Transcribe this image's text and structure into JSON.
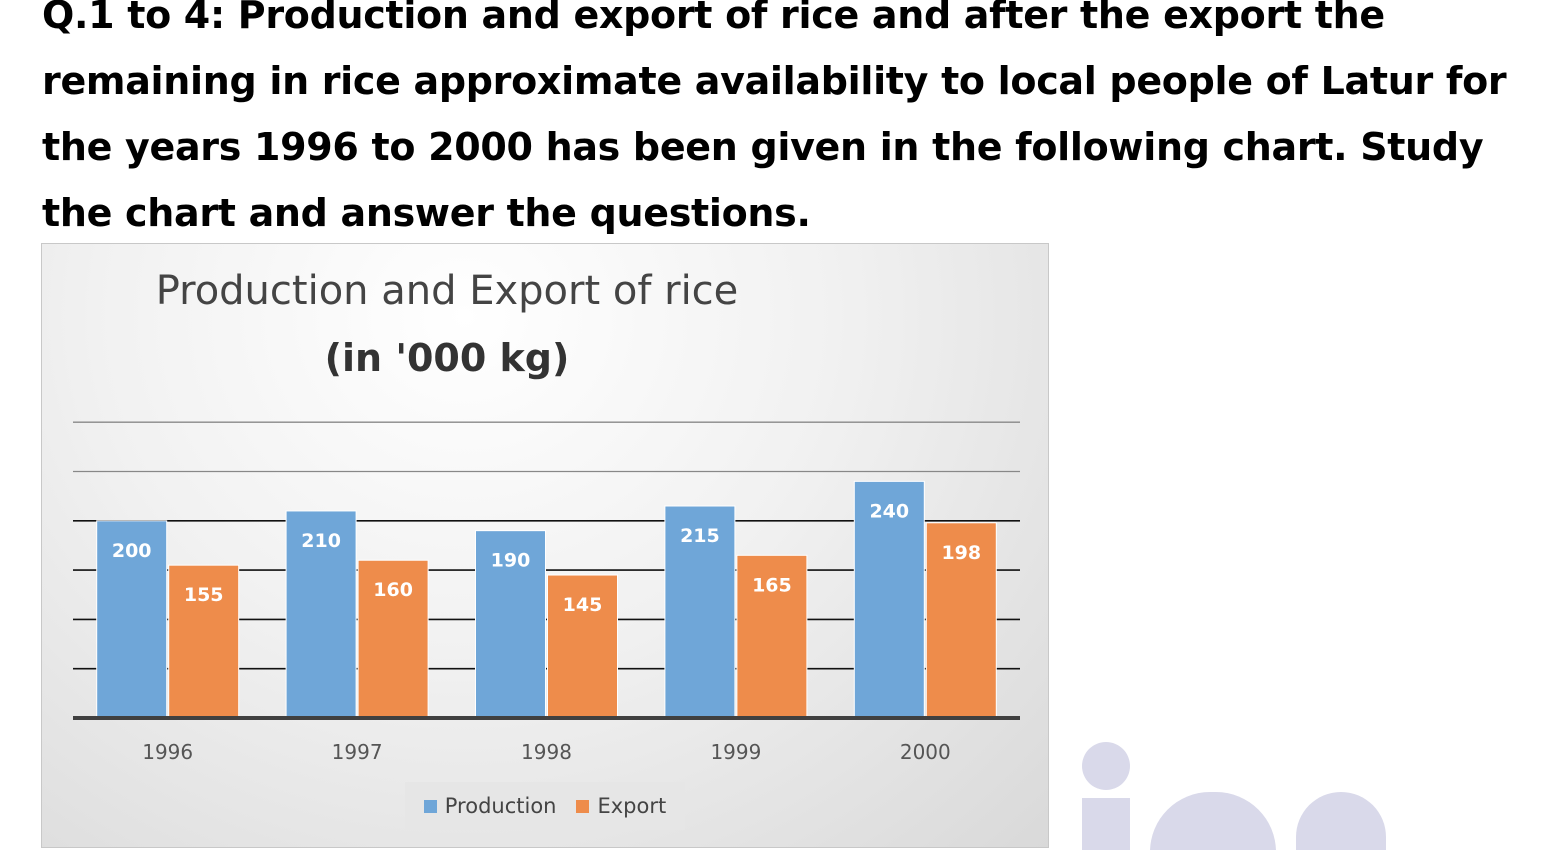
{
  "question": {
    "text": "Q.1 to 4: Production and export of rice and after the export the remaining in rice approximate availability to local people of Latur for the years 1996 to 2000 has been given in the following chart. Study the chart and answer the questions."
  },
  "chart_data": {
    "type": "bar",
    "title": "Production and Export of rice",
    "subtitle": "(in '000 kg)",
    "categories": [
      "1996",
      "1997",
      "1998",
      "1999",
      "2000"
    ],
    "series": [
      {
        "name": "Production",
        "values": [
          200,
          210,
          190,
          215,
          240
        ],
        "color": "#6fa6d8"
      },
      {
        "name": "Export",
        "values": [
          155,
          160,
          145,
          165,
          198
        ],
        "color": "#ee8c4b"
      }
    ],
    "xlabel": "",
    "ylabel": "",
    "ylim": [
      0,
      300
    ],
    "grid": true,
    "legend_position": "bottom",
    "data_labels": true
  }
}
